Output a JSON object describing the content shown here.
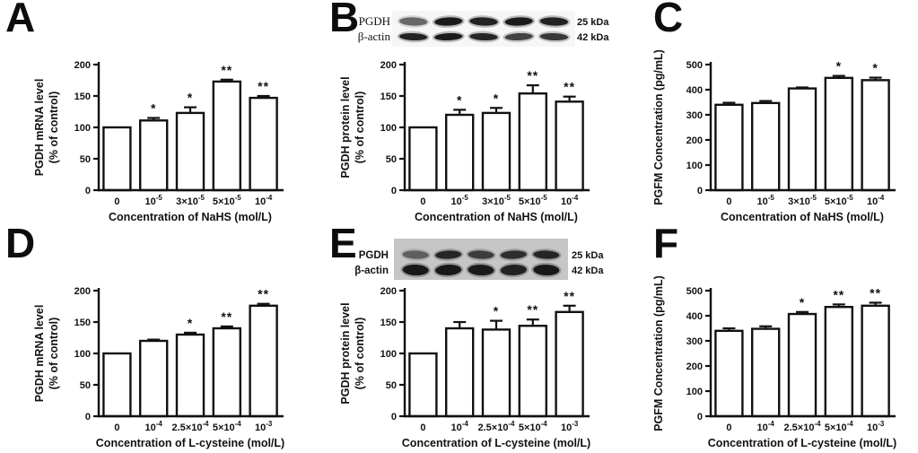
{
  "figure": {
    "background": "#ffffff",
    "ink": "#111111",
    "blot_gray": "#c6c6c6",
    "bar_fill": "#ffffff"
  },
  "chart_data": [
    {
      "panel": "A",
      "type": "bar",
      "ylabel_lines": [
        "PGDH mRNA level",
        "(% of control)"
      ],
      "xlabel": "Concentration of NaHS (mol/L)",
      "categories": [
        "0",
        "10^-5",
        "3×10^-5",
        "5×10^-5",
        "10^-4"
      ],
      "values": [
        100,
        111,
        123,
        173,
        147
      ],
      "errors": [
        0,
        4,
        9,
        3,
        3
      ],
      "significance": [
        "",
        "*",
        "*",
        "**",
        "**"
      ],
      "ylim": [
        0,
        200
      ],
      "yticks": [
        0,
        50,
        100,
        150,
        200
      ],
      "grid": false,
      "legend": null,
      "blot": null
    },
    {
      "panel": "B",
      "type": "bar",
      "ylabel_lines": [
        "PGDH protein level",
        "(% of control)"
      ],
      "xlabel": "Concentration of NaHS (mol/L)",
      "categories": [
        "0",
        "10^-5",
        "3×10^-5",
        "5×10^-5",
        "10^-4"
      ],
      "values": [
        100,
        120,
        123,
        154,
        141
      ],
      "errors": [
        0,
        8,
        8,
        13,
        8
      ],
      "significance": [
        "",
        "*",
        "*",
        "**",
        "**"
      ],
      "ylim": [
        0,
        200
      ],
      "yticks": [
        0,
        50,
        100,
        150,
        200
      ],
      "grid": false,
      "legend": null,
      "blot": {
        "style": "light",
        "rows": [
          {
            "label": "PGDH",
            "kda": "25 kDa",
            "band_intensities": [
              0.55,
              0.95,
              0.9,
              0.95,
              0.9
            ]
          },
          {
            "label": "β-actin",
            "kda": "42 kDa",
            "band_intensities": [
              0.9,
              0.95,
              0.88,
              0.72,
              0.78
            ]
          }
        ]
      }
    },
    {
      "panel": "C",
      "type": "bar",
      "ylabel_lines": [
        "PGFM Concentration (pg/mL)"
      ],
      "xlabel": "Concentration of NaHS (mol/L)",
      "categories": [
        "0",
        "10^-5",
        "3×10^-5",
        "5×10^-5",
        "10^-4"
      ],
      "values": [
        340,
        347,
        405,
        447,
        438
      ],
      "errors": [
        8,
        8,
        4,
        8,
        10
      ],
      "significance": [
        "",
        "",
        "",
        "*",
        "*"
      ],
      "ylim": [
        0,
        500
      ],
      "yticks": [
        0,
        100,
        200,
        300,
        400,
        500
      ],
      "grid": false,
      "legend": null,
      "blot": null
    },
    {
      "panel": "D",
      "type": "bar",
      "ylabel_lines": [
        "PGDH mRNA level",
        "(% of control)"
      ],
      "xlabel": "Concentration of L-cysteine (mol/L)",
      "categories": [
        "0",
        "10^-4",
        "2.5×10^-4",
        "5×10^-4",
        "10^-3"
      ],
      "values": [
        100,
        120,
        130,
        140,
        176
      ],
      "errors": [
        0,
        2,
        3,
        3,
        3
      ],
      "significance": [
        "",
        "",
        "*",
        "**",
        "**"
      ],
      "ylim": [
        0,
        200
      ],
      "yticks": [
        0,
        50,
        100,
        150,
        200
      ],
      "grid": false,
      "legend": null,
      "blot": null
    },
    {
      "panel": "E",
      "type": "bar",
      "ylabel_lines": [
        "PGDH protein level",
        "(% of control)"
      ],
      "xlabel": "Concentration of L-cysteine (mol/L)",
      "categories": [
        "0",
        "10^-4",
        "2.5×10^-4",
        "5×10^-4",
        "10^-3"
      ],
      "values": [
        100,
        140,
        138,
        144,
        166
      ],
      "errors": [
        0,
        10,
        14,
        10,
        10
      ],
      "significance": [
        "",
        "",
        "*",
        "**",
        "**"
      ],
      "ylim": [
        0,
        200
      ],
      "yticks": [
        0,
        50,
        100,
        150,
        200
      ],
      "grid": false,
      "legend": null,
      "blot": {
        "style": "gray",
        "rows": [
          {
            "label": "PGDH",
            "kda": "25 kDa",
            "band_intensities": [
              0.5,
              0.85,
              0.7,
              0.8,
              0.85
            ]
          },
          {
            "label": "β-actin",
            "kda": "42 kDa",
            "band_intensities": [
              0.95,
              0.95,
              0.93,
              0.88,
              0.95
            ]
          }
        ]
      }
    },
    {
      "panel": "F",
      "type": "bar",
      "ylabel_lines": [
        "PGFM Concentration (pg/mL)"
      ],
      "xlabel": "Concentration of L-cysteine (mol/L)",
      "categories": [
        "0",
        "10^-4",
        "2.5×10^-4",
        "5×10^-4",
        "10^-3"
      ],
      "values": [
        340,
        348,
        407,
        435,
        440
      ],
      "errors": [
        10,
        10,
        8,
        10,
        12
      ],
      "significance": [
        "",
        "",
        "*",
        "**",
        "**"
      ],
      "ylim": [
        0,
        500
      ],
      "yticks": [
        0,
        100,
        200,
        300,
        400,
        500
      ],
      "grid": false,
      "legend": null,
      "blot": null
    }
  ]
}
